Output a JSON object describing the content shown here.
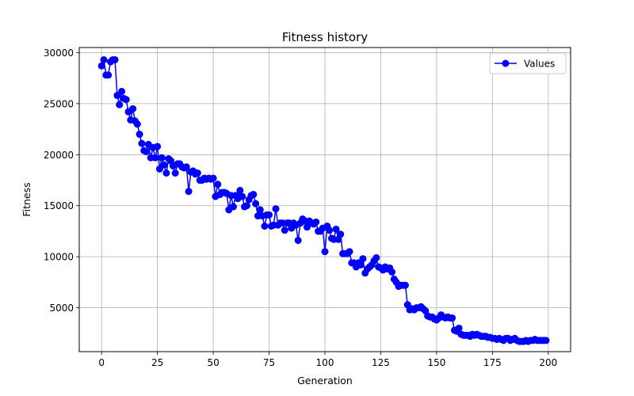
{
  "chart_data": {
    "type": "line",
    "title": "Fitness history",
    "xlabel": "Generation",
    "ylabel": "Fitness",
    "xlim": [
      -10,
      210
    ],
    "ylim": [
      700,
      30500
    ],
    "xticks": [
      0,
      25,
      50,
      75,
      100,
      125,
      150,
      175,
      200
    ],
    "xtick_labels": [
      "0",
      "25",
      "50",
      "75",
      "100",
      "125",
      "150",
      "175",
      "200"
    ],
    "yticks": [
      5000,
      10000,
      15000,
      20000,
      25000,
      30000
    ],
    "ytick_labels": [
      "5000",
      "10000",
      "15000",
      "20000",
      "25000",
      "30000"
    ],
    "grid": true,
    "legend_position": "top-right",
    "series": [
      {
        "name": "Values",
        "color": "#0000ff",
        "marker": "circle",
        "x": [
          0,
          1,
          2,
          3,
          4,
          5,
          6,
          7,
          8,
          9,
          10,
          11,
          12,
          13,
          14,
          15,
          16,
          17,
          18,
          19,
          20,
          21,
          22,
          23,
          24,
          25,
          26,
          27,
          28,
          29,
          30,
          31,
          32,
          33,
          34,
          35,
          36,
          37,
          38,
          39,
          40,
          41,
          42,
          43,
          44,
          45,
          46,
          47,
          48,
          49,
          50,
          51,
          52,
          53,
          54,
          55,
          56,
          57,
          58,
          59,
          60,
          61,
          62,
          63,
          64,
          65,
          66,
          67,
          68,
          69,
          70,
          71,
          72,
          73,
          74,
          75,
          76,
          77,
          78,
          79,
          80,
          81,
          82,
          83,
          84,
          85,
          86,
          87,
          88,
          89,
          90,
          91,
          92,
          93,
          94,
          95,
          96,
          97,
          98,
          99,
          100,
          101,
          102,
          103,
          104,
          105,
          106,
          107,
          108,
          109,
          110,
          111,
          112,
          113,
          114,
          115,
          116,
          117,
          118,
          119,
          120,
          121,
          122,
          123,
          124,
          125,
          126,
          127,
          128,
          129,
          130,
          131,
          132,
          133,
          134,
          135,
          136,
          137,
          138,
          139,
          140,
          141,
          142,
          143,
          144,
          145,
          146,
          147,
          148,
          149,
          150,
          151,
          152,
          153,
          154,
          155,
          156,
          157,
          158,
          159,
          160,
          161,
          162,
          163,
          164,
          165,
          166,
          167,
          168,
          169,
          170,
          171,
          172,
          173,
          174,
          175,
          176,
          177,
          178,
          179,
          180,
          181,
          182,
          183,
          184,
          185,
          186,
          187,
          188,
          189,
          190,
          191,
          192,
          193,
          194,
          195,
          196,
          197,
          198,
          199
        ],
        "y": [
          28700,
          29300,
          27800,
          27800,
          29100,
          29300,
          29300,
          25800,
          24900,
          26200,
          25500,
          25400,
          24200,
          23400,
          24500,
          23300,
          23000,
          22000,
          21100,
          20400,
          20300,
          21000,
          19700,
          20700,
          19700,
          20800,
          18600,
          19700,
          19000,
          18200,
          19600,
          19400,
          18900,
          18200,
          19100,
          19100,
          18800,
          18700,
          18800,
          16400,
          18300,
          18400,
          18100,
          18200,
          17500,
          17500,
          17700,
          17600,
          17700,
          17600,
          17700,
          15900,
          17100,
          16100,
          16300,
          16300,
          16200,
          14600,
          16000,
          14900,
          16000,
          15700,
          16500,
          15900,
          14900,
          15000,
          15600,
          16000,
          16100,
          15200,
          14000,
          14600,
          14000,
          13000,
          14100,
          14100,
          13000,
          13100,
          14700,
          13100,
          13300,
          13300,
          12600,
          13300,
          13300,
          12800,
          13300,
          13100,
          11600,
          13300,
          13700,
          13500,
          12900,
          13500,
          13300,
          13200,
          13400,
          12500,
          12500,
          12800,
          10500,
          13000,
          12600,
          11800,
          11700,
          12700,
          11700,
          12200,
          10300,
          10300,
          10300,
          10500,
          9400,
          9400,
          9000,
          9400,
          9200,
          9800,
          8400,
          8800,
          9000,
          9200,
          9600,
          9900,
          9000,
          8900,
          8700,
          9000,
          8800,
          8900,
          8500,
          7800,
          7500,
          7100,
          7200,
          7200,
          7200,
          5300,
          4800,
          4900,
          4800,
          5000,
          5000,
          5100,
          4900,
          4700,
          4200,
          4100,
          4100,
          3900,
          3800,
          4000,
          4300,
          4100,
          4000,
          4100,
          4000,
          4000,
          2800,
          2700,
          3000,
          2400,
          2300,
          2300,
          2300,
          2200,
          2400,
          2300,
          2400,
          2300,
          2200,
          2200,
          2200,
          2100,
          2100,
          2000,
          2000,
          1900,
          2000,
          1900,
          1800,
          2000,
          2000,
          1800,
          1900,
          2000,
          1800,
          1700,
          1700,
          1700,
          1800,
          1700,
          1800,
          1800,
          1900,
          1800,
          1800,
          1800,
          1800,
          1800
        ]
      }
    ]
  }
}
